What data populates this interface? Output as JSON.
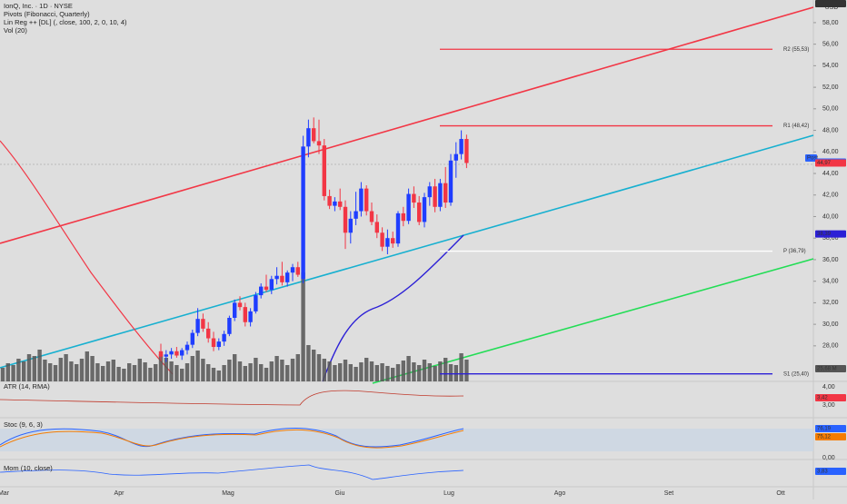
{
  "chart_data": {
    "type": "candlestick",
    "currency": "USD",
    "legend": [
      "IonQ, Inc. · 1D · NYSE",
      "Pivots (Fibonacci, Quarterly)",
      "Lin Reg ++ [DL] (, close, 100, 2, 0, 10, 4)",
      "Vol (20)"
    ],
    "ylim": [
      24.7,
      60.1
    ],
    "yticks": [
      {
        "value": 28,
        "label": "28,00"
      },
      {
        "value": 30,
        "label": "30,00"
      },
      {
        "value": 32,
        "label": "32,00"
      },
      {
        "value": 34,
        "label": "34,00"
      },
      {
        "value": 36,
        "label": "36,00"
      },
      {
        "value": 38,
        "label": "38,00"
      },
      {
        "value": 40,
        "label": "40,00"
      },
      {
        "value": 42,
        "label": "42,00"
      },
      {
        "value": 44,
        "label": "44,00"
      },
      {
        "value": 46,
        "label": "46,00"
      },
      {
        "value": 48,
        "label": "48,00"
      },
      {
        "value": 50,
        "label": "50,00"
      },
      {
        "value": 52,
        "label": "52,00"
      },
      {
        "value": 54,
        "label": "54,00"
      },
      {
        "value": 56,
        "label": "56,00"
      },
      {
        "value": 58,
        "label": "58,00"
      }
    ],
    "time_labels": [
      "Mar",
      "Apr",
      "Mag",
      "Giu",
      "Lug",
      "Ago",
      "Set",
      "Ott"
    ],
    "candle_start": 30,
    "candles": [
      [
        27.5,
        28.2,
        26.6,
        27.0
      ],
      [
        27.0,
        27.6,
        26.5,
        27.2
      ],
      [
        27.2,
        27.8,
        26.8,
        27.5
      ],
      [
        27.5,
        27.9,
        26.9,
        27.1
      ],
      [
        27.1,
        27.8,
        26.7,
        27.6
      ],
      [
        27.6,
        28.4,
        27.2,
        28.1
      ],
      [
        28.1,
        29.5,
        27.8,
        29.2
      ],
      [
        29.2,
        31.5,
        28.9,
        30.5
      ],
      [
        30.5,
        31.0,
        29.3,
        29.6
      ],
      [
        29.6,
        30.2,
        28.3,
        28.7
      ],
      [
        28.7,
        29.3,
        27.5,
        27.9
      ],
      [
        27.9,
        28.7,
        27.6,
        28.4
      ],
      [
        28.4,
        29.4,
        28.0,
        29.1
      ],
      [
        29.1,
        30.8,
        28.9,
        30.6
      ],
      [
        30.6,
        32.3,
        30.3,
        32.0
      ],
      [
        32.0,
        32.6,
        31.3,
        31.6
      ],
      [
        31.6,
        32.0,
        29.8,
        30.2
      ],
      [
        30.2,
        31.5,
        29.8,
        31.2
      ],
      [
        31.2,
        33.0,
        31.0,
        32.7
      ],
      [
        32.7,
        33.8,
        32.4,
        33.5
      ],
      [
        33.5,
        34.6,
        33.0,
        33.2
      ],
      [
        33.2,
        34.5,
        32.8,
        34.2
      ],
      [
        34.2,
        35.3,
        33.7,
        34.5
      ],
      [
        34.5,
        35.8,
        33.6,
        33.9
      ],
      [
        33.9,
        35.0,
        33.5,
        34.8
      ],
      [
        34.8,
        35.6,
        34.0,
        35.3
      ],
      [
        35.3,
        35.8,
        34.4,
        34.6
      ],
      [
        34.2,
        47.5,
        33.8,
        46.5
      ],
      [
        46.5,
        49.0,
        45.5,
        48.2
      ],
      [
        48.2,
        49.2,
        46.8,
        47.0
      ],
      [
        47.0,
        49.0,
        45.8,
        46.6
      ],
      [
        46.6,
        47.2,
        41.5,
        41.9
      ],
      [
        41.9,
        42.5,
        40.7,
        41.0
      ],
      [
        41.0,
        41.8,
        40.5,
        41.4
      ],
      [
        41.4,
        42.6,
        40.6,
        40.9
      ],
      [
        40.9,
        41.5,
        37.0,
        38.5
      ],
      [
        38.5,
        40.5,
        37.5,
        39.8
      ],
      [
        39.8,
        42.3,
        39.2,
        40.5
      ],
      [
        40.5,
        43.2,
        40.0,
        42.6
      ],
      [
        42.6,
        42.9,
        40.1,
        40.5
      ],
      [
        40.5,
        41.3,
        39.2,
        39.5
      ],
      [
        39.5,
        40.2,
        38.0,
        38.5
      ],
      [
        38.5,
        39.0,
        36.8,
        37.2
      ],
      [
        37.2,
        38.8,
        36.5,
        38.0
      ],
      [
        38.0,
        38.6,
        37.1,
        37.5
      ],
      [
        37.5,
        40.5,
        37.2,
        40.3
      ],
      [
        40.3,
        40.9,
        39.1,
        39.6
      ],
      [
        39.6,
        42.6,
        39.3,
        42.1
      ],
      [
        42.1,
        42.8,
        40.8,
        41.3
      ],
      [
        41.3,
        41.9,
        39.2,
        39.5
      ],
      [
        39.5,
        42.2,
        39.0,
        41.8
      ],
      [
        41.8,
        43.2,
        41.0,
        42.8
      ],
      [
        42.8,
        43.5,
        40.4,
        40.9
      ],
      [
        40.9,
        43.5,
        40.5,
        43.1
      ],
      [
        43.1,
        44.6,
        40.8,
        41.3
      ],
      [
        41.3,
        45.8,
        41.0,
        45.2
      ],
      [
        45.2,
        46.9,
        43.6,
        45.8
      ],
      [
        45.8,
        48.0,
        45.3,
        47.2
      ],
      [
        47.2,
        47.6,
        44.5,
        44.97
      ]
    ],
    "up_color": "#1f3dff",
    "down_color": "#f23645",
    "volume_ylim": [
      0,
      420
    ],
    "volume": [
      15,
      20,
      18,
      25,
      22,
      30,
      28,
      35,
      24,
      20,
      18,
      26,
      30,
      22,
      19,
      25,
      33,
      28,
      20,
      17,
      22,
      24,
      16,
      14,
      20,
      18,
      25,
      21,
      15,
      19,
      30,
      26,
      22,
      18,
      14,
      20,
      28,
      34,
      25,
      19,
      15,
      12,
      18,
      24,
      30,
      22,
      17,
      20,
      26,
      19,
      15,
      22,
      28,
      24,
      18,
      25,
      30,
      120,
      40,
      35,
      30,
      25,
      22,
      18,
      20,
      24,
      19,
      16,
      21,
      26,
      22,
      18,
      20,
      17,
      15,
      19,
      23,
      28,
      21,
      18,
      24,
      20,
      17,
      22,
      26,
      19,
      18,
      31,
      24
    ],
    "volume_color": "#555555",
    "pivots": [
      {
        "label": "R2 (55,53)",
        "value": 55.53,
        "color": "#f23645"
      },
      {
        "label": "R1 (48,42)",
        "value": 48.42,
        "color": "#f23645"
      },
      {
        "label": "P (36,79)",
        "value": 36.79,
        "color": "#ffffff"
      },
      {
        "label": "S1 (25,40)",
        "value": 25.4,
        "color": "#2b1fd6"
      }
    ],
    "price_badges": [
      {
        "label": "Post",
        "color": "#2962ff"
      },
      {
        "label": "45,05",
        "value": 45.05,
        "color": "#2962ff"
      },
      {
        "label": "44,97",
        "value": 44.97,
        "color": "#f23645"
      },
      {
        "label": "38,39",
        "value": 38.39,
        "color": "#2b1fd6"
      },
      {
        "label": "25,68 M",
        "color": "#555555"
      },
      {
        "label": "25,58 M",
        "color": "#333333"
      }
    ],
    "indicators": [
      {
        "title": "ATR (14, RMA)",
        "ticks": [
          "4,00",
          "3,00"
        ],
        "badges": [
          {
            "label": "3,42",
            "color": "#f23645"
          }
        ]
      },
      {
        "title": "Stoc (9, 6, 3)",
        "ticks": [
          "0,00"
        ],
        "badges": [
          {
            "label": "76,19",
            "color": "#2962ff"
          },
          {
            "label": "75,12",
            "color": "#f57c00"
          }
        ]
      },
      {
        "title": "Mom (10, close)",
        "ticks": [],
        "badges": [
          {
            "label": "3,83",
            "color": "#2962ff"
          }
        ]
      }
    ]
  }
}
